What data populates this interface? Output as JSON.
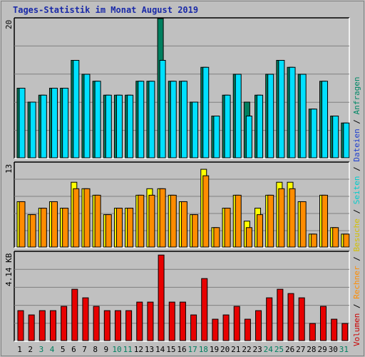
{
  "title": "Tages-Statistik im Monat August 2019",
  "legend": {
    "items": [
      {
        "label": "Volumen",
        "color": "#cc0000"
      },
      {
        "label": "Rechner",
        "color": "#ff9900"
      },
      {
        "label": "Besuche",
        "color": "#e8d000"
      },
      {
        "label": "Seiten",
        "color": "#00cccc"
      },
      {
        "label": "Dateien",
        "color": "#1f3fcf"
      },
      {
        "label": "Anfragen",
        "color": "#008866"
      }
    ],
    "separator": " / "
  },
  "colors": {
    "anfragen": "#007f5f",
    "dateien": "#1f3fcf",
    "seiten": "#00e0ff",
    "besuche": "#ffff00",
    "rechner": "#ff8c00",
    "volumen": "#e80000",
    "weekend_label": "#007f5f",
    "weekday_label": "#000000"
  },
  "chart_data": [
    {
      "type": "bar",
      "panel": "top",
      "ymax_label": "20",
      "ylim": [
        0,
        20
      ],
      "categories": [
        "1",
        "2",
        "3",
        "4",
        "5",
        "6",
        "7",
        "8",
        "9",
        "10",
        "11",
        "12",
        "13",
        "14",
        "15",
        "16",
        "17",
        "18",
        "19",
        "20",
        "21",
        "22",
        "23",
        "24",
        "25",
        "26",
        "27",
        "28",
        "29",
        "30",
        "31"
      ],
      "weekend_days": [
        "3",
        "4",
        "10",
        "11",
        "17",
        "18",
        "24",
        "25",
        "31"
      ],
      "series": [
        {
          "name": "Anfragen",
          "values": [
            10,
            8,
            9,
            10,
            10,
            14,
            12,
            11,
            9,
            9,
            9,
            11,
            11,
            20,
            11,
            11,
            8,
            13,
            6,
            9,
            12,
            8,
            9,
            12,
            14,
            13,
            12,
            7,
            11,
            6,
            5
          ]
        },
        {
          "name": "Seiten",
          "values": [
            10,
            8,
            9,
            10,
            10,
            14,
            12,
            11,
            9,
            9,
            9,
            11,
            11,
            14,
            11,
            11,
            8,
            13,
            6,
            9,
            12,
            6,
            9,
            12,
            14,
            13,
            12,
            7,
            11,
            6,
            5
          ]
        }
      ]
    },
    {
      "type": "bar",
      "panel": "middle",
      "ymax_label": "13",
      "ylim": [
        0,
        13
      ],
      "series": [
        {
          "name": "Besuche",
          "values": [
            7,
            5,
            6,
            7,
            6,
            10,
            9,
            8,
            5,
            6,
            6,
            8,
            9,
            9,
            8,
            7,
            5,
            12,
            3,
            6,
            8,
            4,
            6,
            8,
            10,
            10,
            7,
            2,
            8,
            3,
            2
          ]
        },
        {
          "name": "Rechner",
          "values": [
            7,
            5,
            6,
            7,
            6,
            9,
            9,
            8,
            5,
            6,
            6,
            8,
            8,
            9,
            8,
            7,
            5,
            11,
            3,
            6,
            8,
            3,
            5,
            8,
            9,
            9,
            7,
            2,
            8,
            3,
            2
          ]
        }
      ]
    },
    {
      "type": "bar",
      "panel": "bottom",
      "ymax_label": "4.14 KB",
      "ylim": [
        0,
        4.14
      ],
      "series": [
        {
          "name": "Volumen",
          "values": [
            1.4,
            1.2,
            1.4,
            1.4,
            1.6,
            2.4,
            2.0,
            1.6,
            1.4,
            1.4,
            1.4,
            1.8,
            1.8,
            4.0,
            1.8,
            1.8,
            1.2,
            2.9,
            1.0,
            1.2,
            1.6,
            1.0,
            1.4,
            2.0,
            2.4,
            2.2,
            2.0,
            0.8,
            1.6,
            1.0,
            0.8
          ]
        }
      ]
    }
  ]
}
